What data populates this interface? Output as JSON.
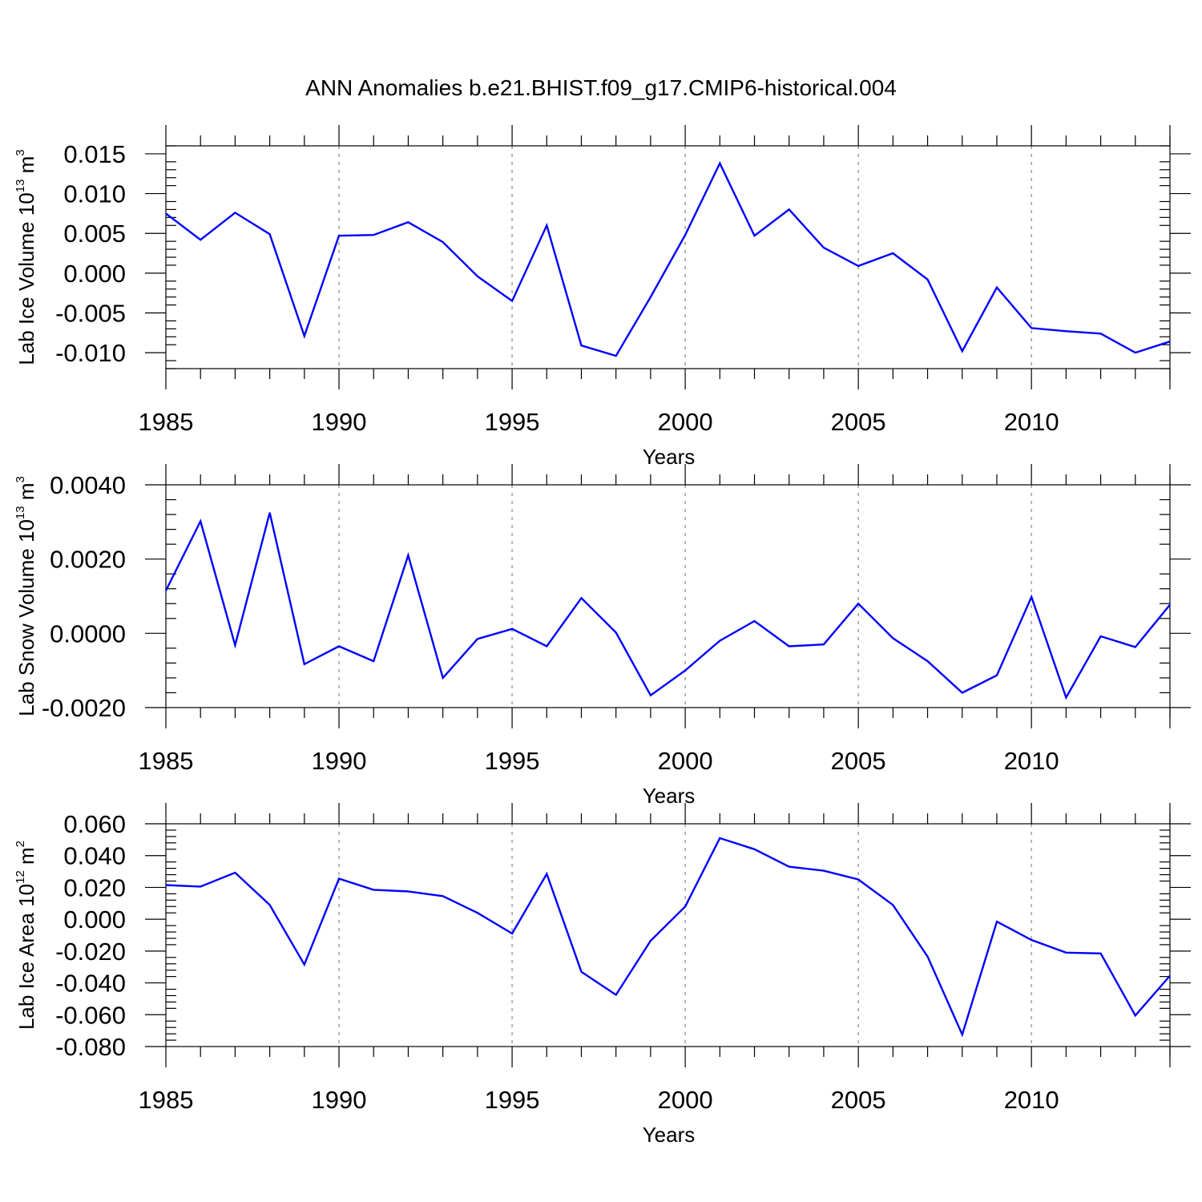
{
  "title": "ANN Anomalies b.e21.BHIST.f09_g17.CMIP6-historical.004",
  "colors": {
    "series": "#0000ff",
    "axis": "#000000",
    "grid": "#999999"
  },
  "chart_data": [
    {
      "type": "line",
      "ylabel": {
        "text": "Lab Ice Volume 10",
        "exponent": "13",
        "unit": " m",
        "unit_exponent": "3"
      },
      "xlabel": "Years",
      "xlim": [
        1985,
        2014
      ],
      "ylim": [
        -0.012,
        0.016
      ],
      "yticks": [
        -0.01,
        -0.005,
        0.0,
        0.005,
        0.01,
        0.015
      ],
      "ytick_labels": [
        "-0.010",
        "-0.005",
        "0.000",
        "0.005",
        "0.010",
        "0.015"
      ],
      "xticks": [
        1985,
        1990,
        1995,
        2000,
        2005,
        2010
      ],
      "xtick_labels": [
        "1985",
        "1990",
        "1995",
        "2000",
        "2005",
        "2010"
      ],
      "grid_x": [
        1990,
        1995,
        2000,
        2005,
        2010
      ],
      "x": [
        1985,
        1986,
        1987,
        1988,
        1989,
        1990,
        1991,
        1992,
        1993,
        1994,
        1995,
        1996,
        1997,
        1998,
        1999,
        2000,
        2001,
        2002,
        2003,
        2004,
        2005,
        2006,
        2007,
        2008,
        2009,
        2010,
        2011,
        2012,
        2013,
        2014
      ],
      "series": [
        {
          "name": "Lab Ice Volume",
          "values": [
            0.0075,
            0.0042,
            0.0076,
            0.0049,
            -0.0079,
            0.0047,
            0.0048,
            0.0064,
            0.0039,
            -0.0004,
            -0.0035,
            0.006,
            -0.0091,
            -0.0104,
            -0.003,
            0.0048,
            0.0138,
            0.0047,
            0.008,
            0.0032,
            0.0009,
            0.0025,
            -0.0008,
            -0.0098,
            -0.0018,
            -0.0069,
            -0.0073,
            -0.0076,
            -0.01,
            -0.0086
          ]
        }
      ]
    },
    {
      "type": "line",
      "ylabel": {
        "text": "Lab Snow Volume 10",
        "exponent": "13",
        "unit": " m",
        "unit_exponent": "3"
      },
      "xlabel": "Years",
      "xlim": [
        1985,
        2014
      ],
      "ylim": [
        -0.002,
        0.004
      ],
      "yticks": [
        -0.002,
        0.0,
        0.002,
        0.004
      ],
      "ytick_labels": [
        "-0.0020",
        "0.0000",
        "0.0020",
        "0.0040"
      ],
      "xticks": [
        1985,
        1990,
        1995,
        2000,
        2005,
        2010
      ],
      "xtick_labels": [
        "1985",
        "1990",
        "1995",
        "2000",
        "2005",
        "2010"
      ],
      "grid_x": [
        1990,
        1995,
        2000,
        2005,
        2010
      ],
      "x": [
        1985,
        1986,
        1987,
        1988,
        1989,
        1990,
        1991,
        1992,
        1993,
        1994,
        1995,
        1996,
        1997,
        1998,
        1999,
        2000,
        2001,
        2002,
        2003,
        2004,
        2005,
        2006,
        2007,
        2008,
        2009,
        2010,
        2011,
        2012,
        2013,
        2014
      ],
      "series": [
        {
          "name": "Lab Snow Volume",
          "values": [
            0.00115,
            0.00302,
            -0.00032,
            0.00325,
            -0.00083,
            -0.00035,
            -0.00075,
            0.0021,
            -0.0012,
            -0.00015,
            0.00012,
            -0.00035,
            0.00095,
            2e-05,
            -0.00167,
            -0.001,
            -0.0002,
            0.00033,
            -0.00035,
            -0.0003,
            0.0008,
            -0.00013,
            -0.00075,
            -0.0016,
            -0.00113,
            0.00098,
            -0.00173,
            -8e-05,
            -0.00037,
            0.00077
          ]
        }
      ]
    },
    {
      "type": "line",
      "ylabel": {
        "text": "Lab Ice Area 10",
        "exponent": "12",
        "unit": " m",
        "unit_exponent": "2"
      },
      "xlabel": "Years",
      "xlim": [
        1985,
        2014
      ],
      "ylim": [
        -0.08,
        0.06
      ],
      "yticks": [
        -0.08,
        -0.06,
        -0.04,
        -0.02,
        0.0,
        0.02,
        0.04,
        0.06
      ],
      "ytick_labels": [
        "-0.080",
        "-0.060",
        "-0.040",
        "-0.020",
        "0.000",
        "0.020",
        "0.040",
        "0.060"
      ],
      "xticks": [
        1985,
        1990,
        1995,
        2000,
        2005,
        2010
      ],
      "xtick_labels": [
        "1985",
        "1990",
        "1995",
        "2000",
        "2005",
        "2010"
      ],
      "grid_x": [
        1990,
        1995,
        2000,
        2005,
        2010
      ],
      "x": [
        1985,
        1986,
        1987,
        1988,
        1989,
        1990,
        1991,
        1992,
        1993,
        1994,
        1995,
        1996,
        1997,
        1998,
        1999,
        2000,
        2001,
        2002,
        2003,
        2004,
        2005,
        2006,
        2007,
        2008,
        2009,
        2010,
        2011,
        2012,
        2013,
        2014
      ],
      "series": [
        {
          "name": "Lab Ice Area",
          "values": [
            0.0215,
            0.0205,
            0.0293,
            0.009,
            -0.0285,
            0.0255,
            0.0185,
            0.0175,
            0.0145,
            0.004,
            -0.009,
            0.0285,
            -0.033,
            -0.0475,
            -0.0135,
            0.008,
            0.051,
            0.044,
            0.033,
            0.0305,
            0.025,
            0.009,
            -0.0235,
            -0.0725,
            -0.0015,
            -0.013,
            -0.021,
            -0.0215,
            -0.0605,
            -0.0355
          ]
        }
      ]
    }
  ]
}
